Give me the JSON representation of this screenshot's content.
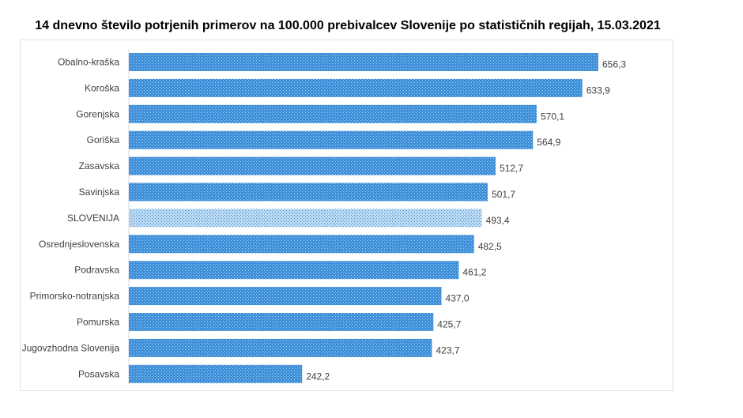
{
  "chart_data": {
    "type": "bar",
    "orientation": "horizontal",
    "title": "14 dnevno število potrjenih primerov na 100.000 prebivalcev Slovenije po statističnih regijah, 15.03.2021",
    "categories": [
      "Obalno-kraška",
      "Koroška",
      "Gorenjska",
      "Goriška",
      "Zasavska",
      "Savinjska",
      "SLOVENIJA",
      "Osrednjeslovenska",
      "Podravska",
      "Primorsko-notranjska",
      "Pomurska",
      "Jugovzhodna Slovenija",
      "Posavska"
    ],
    "values": [
      656.3,
      633.9,
      570.1,
      564.9,
      512.7,
      501.7,
      493.4,
      482.5,
      461.2,
      437.0,
      425.7,
      423.7,
      242.2
    ],
    "labels": [
      "656,3",
      "633,9",
      "570,1",
      "564,9",
      "512,7",
      "501,7",
      "493,4",
      "482,5",
      "461,2",
      "437,0",
      "425,7",
      "423,7",
      "242,2"
    ],
    "highlight": "SLOVENIJA",
    "xlim": [
      0,
      720
    ],
    "grid": false,
    "colors": {
      "bar": "#3d8fd9",
      "bar_dots": "#a9cff2",
      "highlight": "#bcd9f2",
      "highlight_dots": "#3d8fd9"
    }
  }
}
